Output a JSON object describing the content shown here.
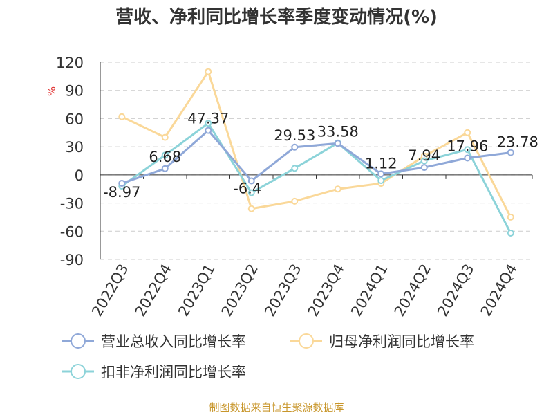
{
  "title": "营收、净利同比增长率季度变动情况(%)",
  "source": "制图数据来自恒生聚源数据库",
  "chart_data": {
    "type": "line",
    "title": "营收、净利同比增长率季度变动情况(%)",
    "ylabel": "%",
    "ylim": [
      -90,
      120
    ],
    "yticks": [
      120,
      90,
      60,
      30,
      0,
      -30,
      -60,
      -90
    ],
    "grid": true,
    "legend_position": "bottom",
    "categories": [
      "2022Q3",
      "2022Q4",
      "2023Q1",
      "2023Q2",
      "2023Q3",
      "2023Q4",
      "2024Q1",
      "2024Q2",
      "2024Q3",
      "2024Q4"
    ],
    "series": [
      {
        "name": "营业总收入同比增长率",
        "color": "#8fa8d8",
        "values": [
          -8.97,
          6.68,
          47.37,
          -6.4,
          29.53,
          33.58,
          1.12,
          7.94,
          17.96,
          23.78
        ],
        "labels": [
          "-8.97",
          "6.68",
          "47.37",
          "-6.4",
          "29.53",
          "33.58",
          "1.12",
          "7.94",
          "17.96",
          "23.78"
        ]
      },
      {
        "name": "归母净利润同比增长率",
        "color": "#fad899",
        "values": [
          62,
          40,
          110,
          -36,
          -28,
          -15,
          -9,
          20,
          45,
          -45
        ]
      },
      {
        "name": "扣非净利润同比增长率",
        "color": "#8cd3d9",
        "values": [
          -12,
          21,
          55,
          -19,
          7,
          34,
          -6,
          15,
          27,
          -62
        ]
      }
    ]
  }
}
